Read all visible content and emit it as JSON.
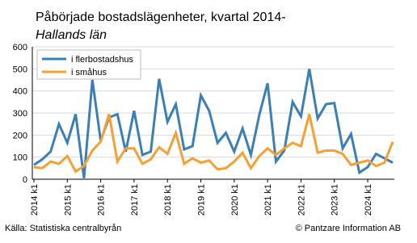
{
  "chart_data": {
    "type": "line",
    "title": "Påbörjade bostadslägenheter, kvartal 2014-",
    "subtitle": "Hallands län",
    "categories": [
      "2014 k1",
      null,
      null,
      null,
      "2015 k1",
      null,
      null,
      null,
      "2016 k1",
      null,
      null,
      null,
      "2017 k1",
      null,
      null,
      null,
      "2018 k1",
      null,
      null,
      null,
      "2019 k1",
      null,
      null,
      null,
      "2020 k1",
      null,
      null,
      null,
      "2021 k1",
      null,
      null,
      null,
      "2022 k1",
      null,
      null,
      null,
      "2023 k1",
      null,
      null,
      null,
      "2024 k1",
      null,
      null,
      null
    ],
    "series": [
      {
        "name": "i flerbostadshus",
        "color": "#3a7fb5",
        "values": [
          65,
          90,
          125,
          250,
          165,
          295,
          5,
          450,
          175,
          280,
          295,
          125,
          310,
          110,
          125,
          455,
          260,
          340,
          135,
          150,
          380,
          310,
          165,
          210,
          125,
          230,
          110,
          290,
          435,
          80,
          130,
          350,
          285,
          500,
          275,
          340,
          345,
          140,
          205,
          30,
          55,
          115,
          95,
          75
        ]
      },
      {
        "name": "i småhus",
        "color": "#f5a033",
        "values": [
          55,
          50,
          80,
          70,
          105,
          35,
          60,
          130,
          170,
          295,
          80,
          140,
          140,
          70,
          90,
          145,
          115,
          210,
          70,
          95,
          75,
          85,
          45,
          50,
          80,
          120,
          50,
          105,
          140,
          110,
          140,
          165,
          150,
          295,
          120,
          130,
          130,
          115,
          65,
          75,
          85,
          60,
          75,
          170
        ]
      }
    ],
    "ylim": [
      0,
      600
    ],
    "yticks": [
      0,
      100,
      200,
      300,
      400,
      500,
      600
    ],
    "grid": true,
    "source": "Källa: Statistiska centralbyrån",
    "credit": "© Pantzare Information AB"
  }
}
